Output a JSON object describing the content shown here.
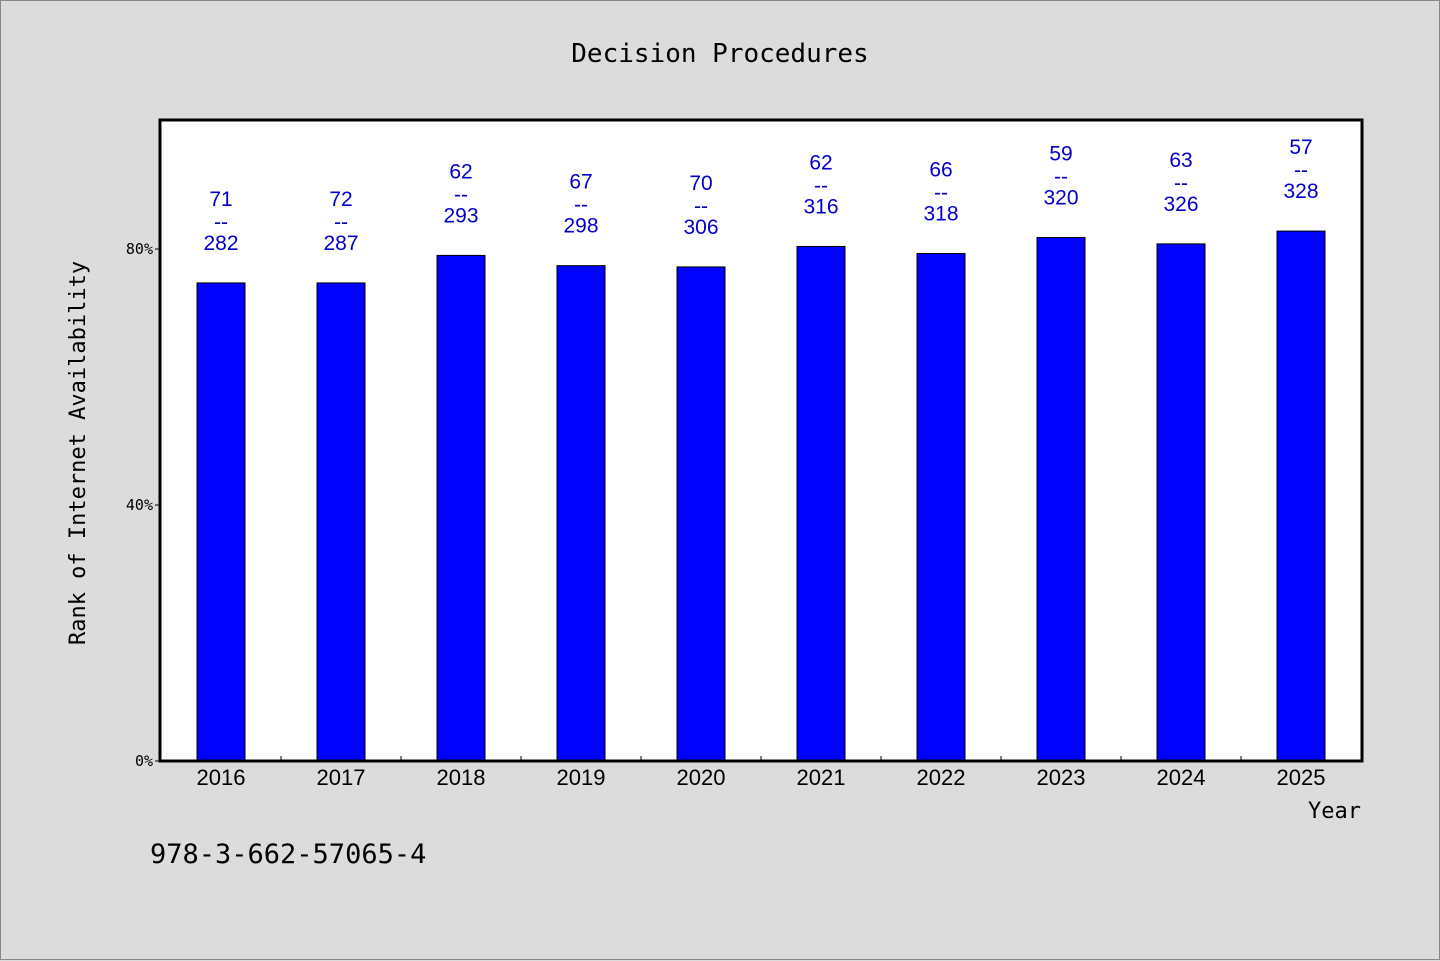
{
  "chart_data": {
    "type": "bar",
    "title": "Decision Procedures",
    "xlabel": "Year",
    "ylabel": "Rank of Internet Availability",
    "categories": [
      "2016",
      "2017",
      "2018",
      "2019",
      "2020",
      "2021",
      "2022",
      "2023",
      "2024",
      "2025"
    ],
    "values": [
      0.747,
      0.747,
      0.79,
      0.774,
      0.772,
      0.804,
      0.793,
      0.818,
      0.808,
      0.828
    ],
    "ylim": [
      0,
      1.0
    ],
    "yticks": [
      0,
      0.4,
      0.8
    ],
    "yticklabels": [
      "0%",
      "40%",
      "80%"
    ],
    "data_labels": [
      {
        "top": "71",
        "sep": "--",
        "bottom": "282"
      },
      {
        "top": "72",
        "sep": "--",
        "bottom": "287"
      },
      {
        "top": "62",
        "sep": "--",
        "bottom": "293"
      },
      {
        "top": "67",
        "sep": "--",
        "bottom": "298"
      },
      {
        "top": "70",
        "sep": "--",
        "bottom": "306"
      },
      {
        "top": "62",
        "sep": "--",
        "bottom": "316"
      },
      {
        "top": "66",
        "sep": "--",
        "bottom": "318"
      },
      {
        "top": "59",
        "sep": "--",
        "bottom": "320"
      },
      {
        "top": "63",
        "sep": "--",
        "bottom": "326"
      },
      {
        "top": "57",
        "sep": "--",
        "bottom": "328"
      }
    ],
    "bar_color": "#0000ff",
    "label_color": "#0000cc",
    "grid": false
  },
  "footer": {
    "text": "978-3-662-57065-4"
  },
  "colors": {
    "background": "#dcdcdc",
    "plot_background": "#ffffff"
  }
}
